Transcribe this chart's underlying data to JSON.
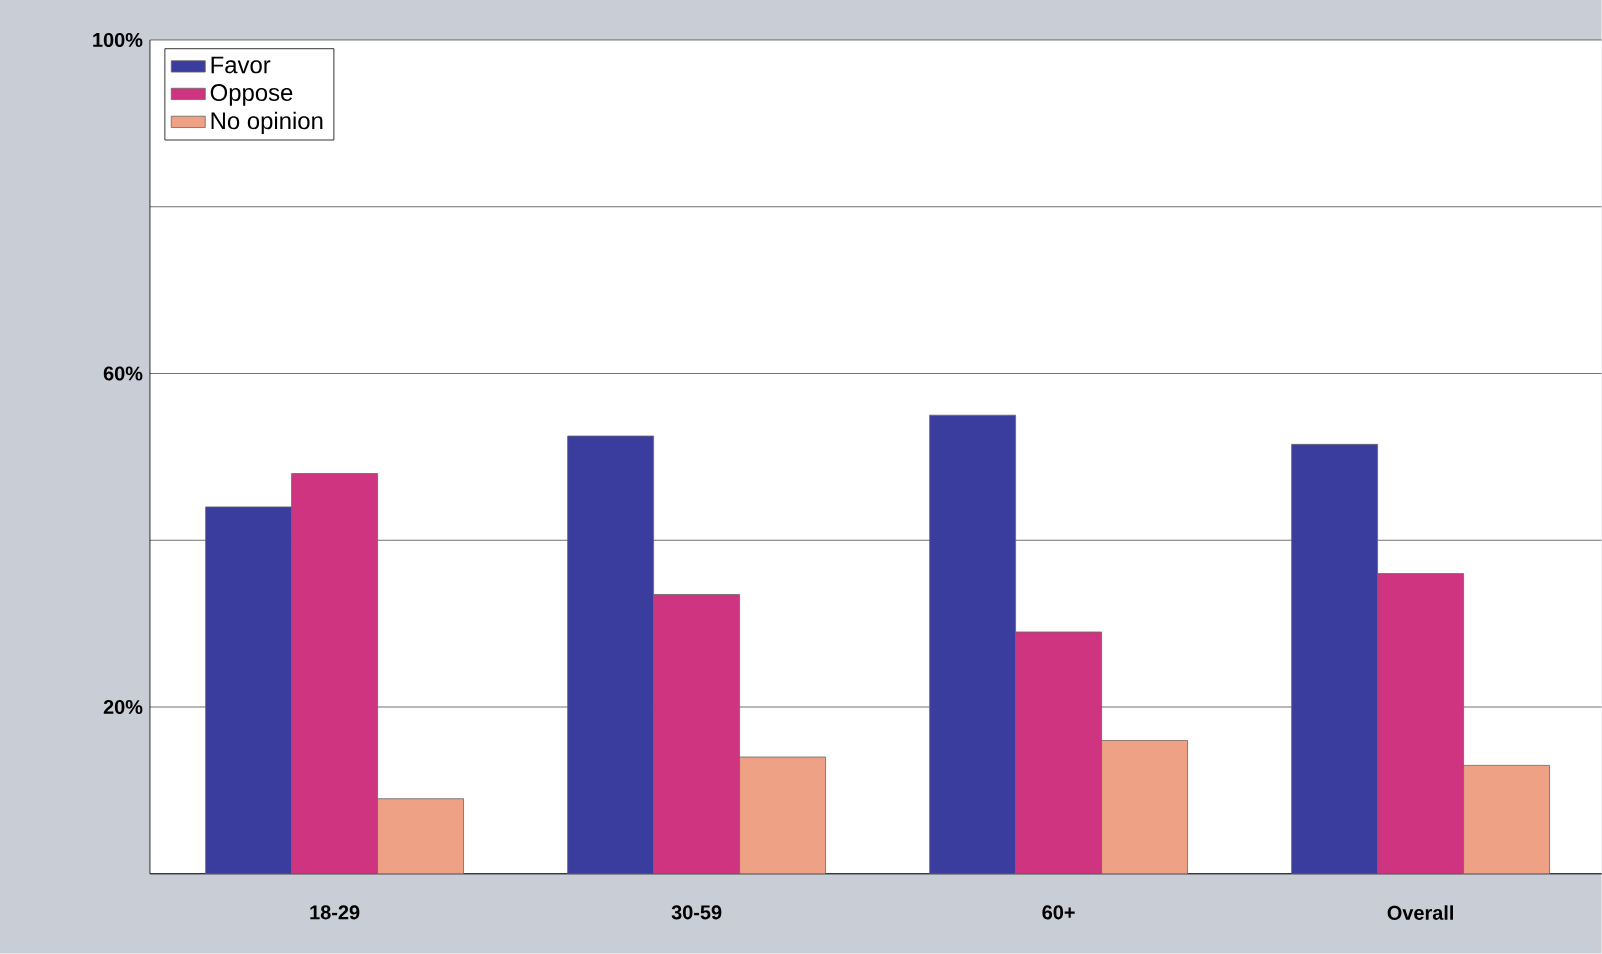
{
  "chart_data": {
    "type": "bar",
    "categories": [
      "18-29",
      "30-59",
      "60+",
      "Overall"
    ],
    "series": [
      {
        "name": "Favor",
        "color": "#3a3d9e",
        "values": [
          44,
          52.5,
          55,
          51.5
        ]
      },
      {
        "name": "Oppose",
        "color": "#cf3480",
        "values": [
          48,
          33.5,
          29,
          36
        ]
      },
      {
        "name": "No opinion",
        "color": "#eea184",
        "values": [
          9,
          14,
          16,
          13
        ]
      }
    ],
    "ylim": [
      0,
      100
    ],
    "yticks": [
      {
        "value": 0,
        "label": null
      },
      {
        "value": 20,
        "label": "20%"
      },
      {
        "value": 40,
        "label": null
      },
      {
        "value": 60,
        "label": "60%"
      },
      {
        "value": 80,
        "label": null
      },
      {
        "value": 100,
        "label": "100%"
      }
    ],
    "grid": "y",
    "legend": "top left"
  }
}
